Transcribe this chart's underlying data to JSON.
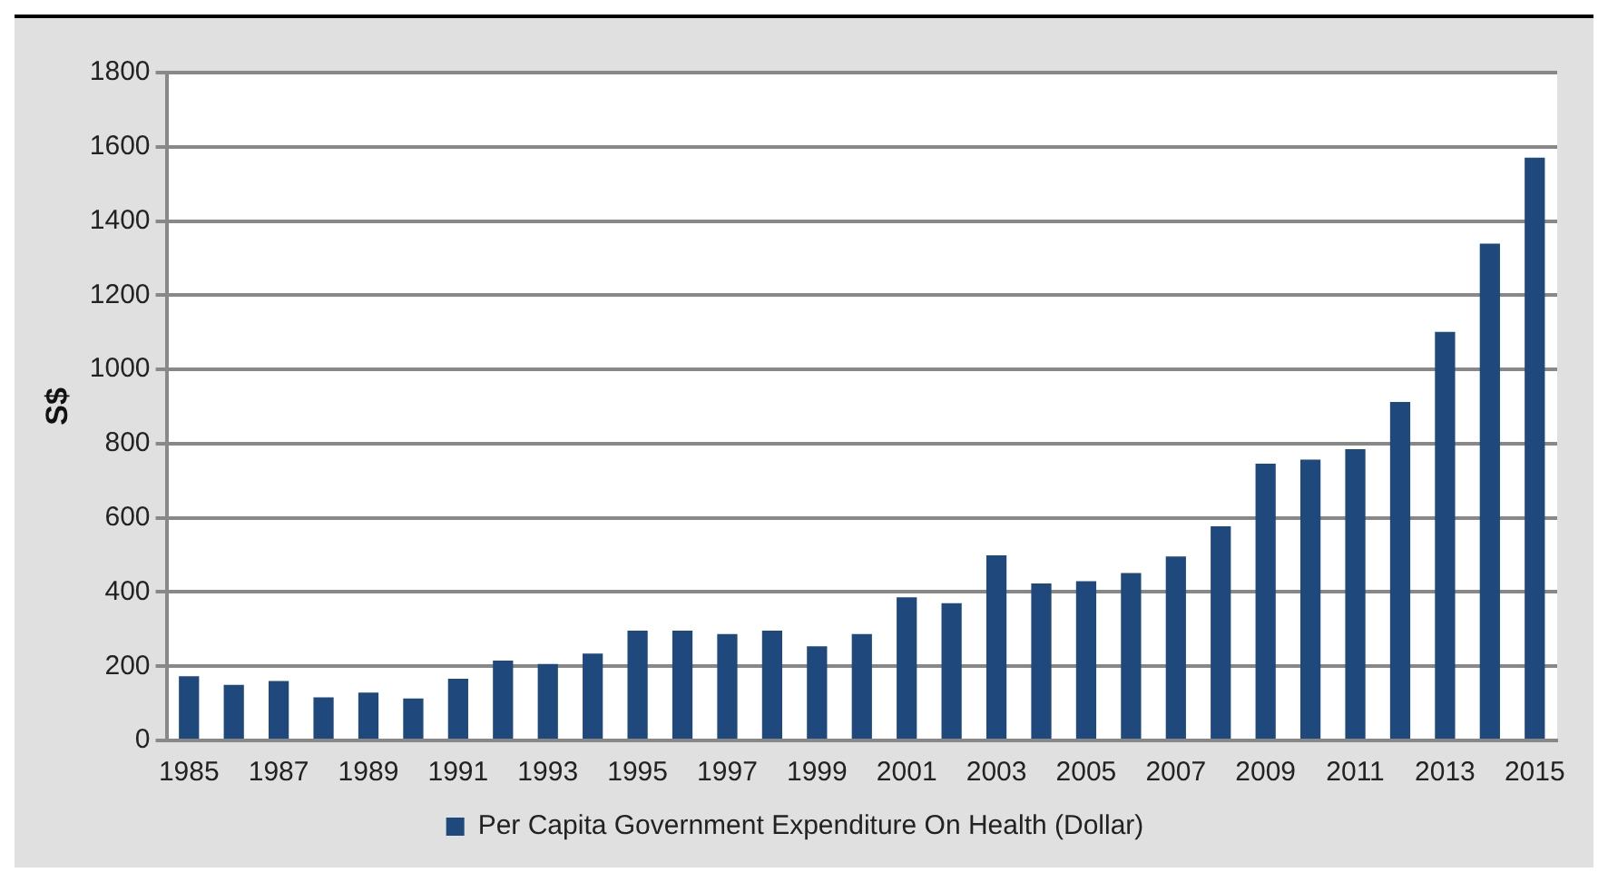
{
  "chart_data": {
    "type": "bar",
    "ylabel": "S$",
    "categories": [
      "1985",
      null,
      "1987",
      null,
      "1989",
      null,
      "1991",
      null,
      "1993",
      null,
      "1995",
      null,
      "1997",
      null,
      "1999",
      null,
      "2001",
      null,
      "2003",
      null,
      "2005",
      null,
      "2007",
      null,
      "2009",
      null,
      "2011",
      null,
      "2013",
      null,
      "2015"
    ],
    "series": [
      {
        "name": "Per Capita Government Expenditure On Health (Dollar)",
        "color": "#1f497d",
        "values": [
          173,
          150,
          160,
          116,
          129,
          113,
          166,
          215,
          206,
          234,
          296,
          296,
          287,
          296,
          254,
          287,
          386,
          370,
          499,
          423,
          429,
          451,
          496,
          577,
          746,
          757,
          785,
          912,
          1101,
          1339,
          1571
        ]
      }
    ],
    "ylim": [
      0,
      1800
    ],
    "yticks": [
      0,
      200,
      400,
      600,
      800,
      1000,
      1200,
      1400,
      1600,
      1800
    ],
    "grid": "y",
    "legend": "bottom"
  }
}
